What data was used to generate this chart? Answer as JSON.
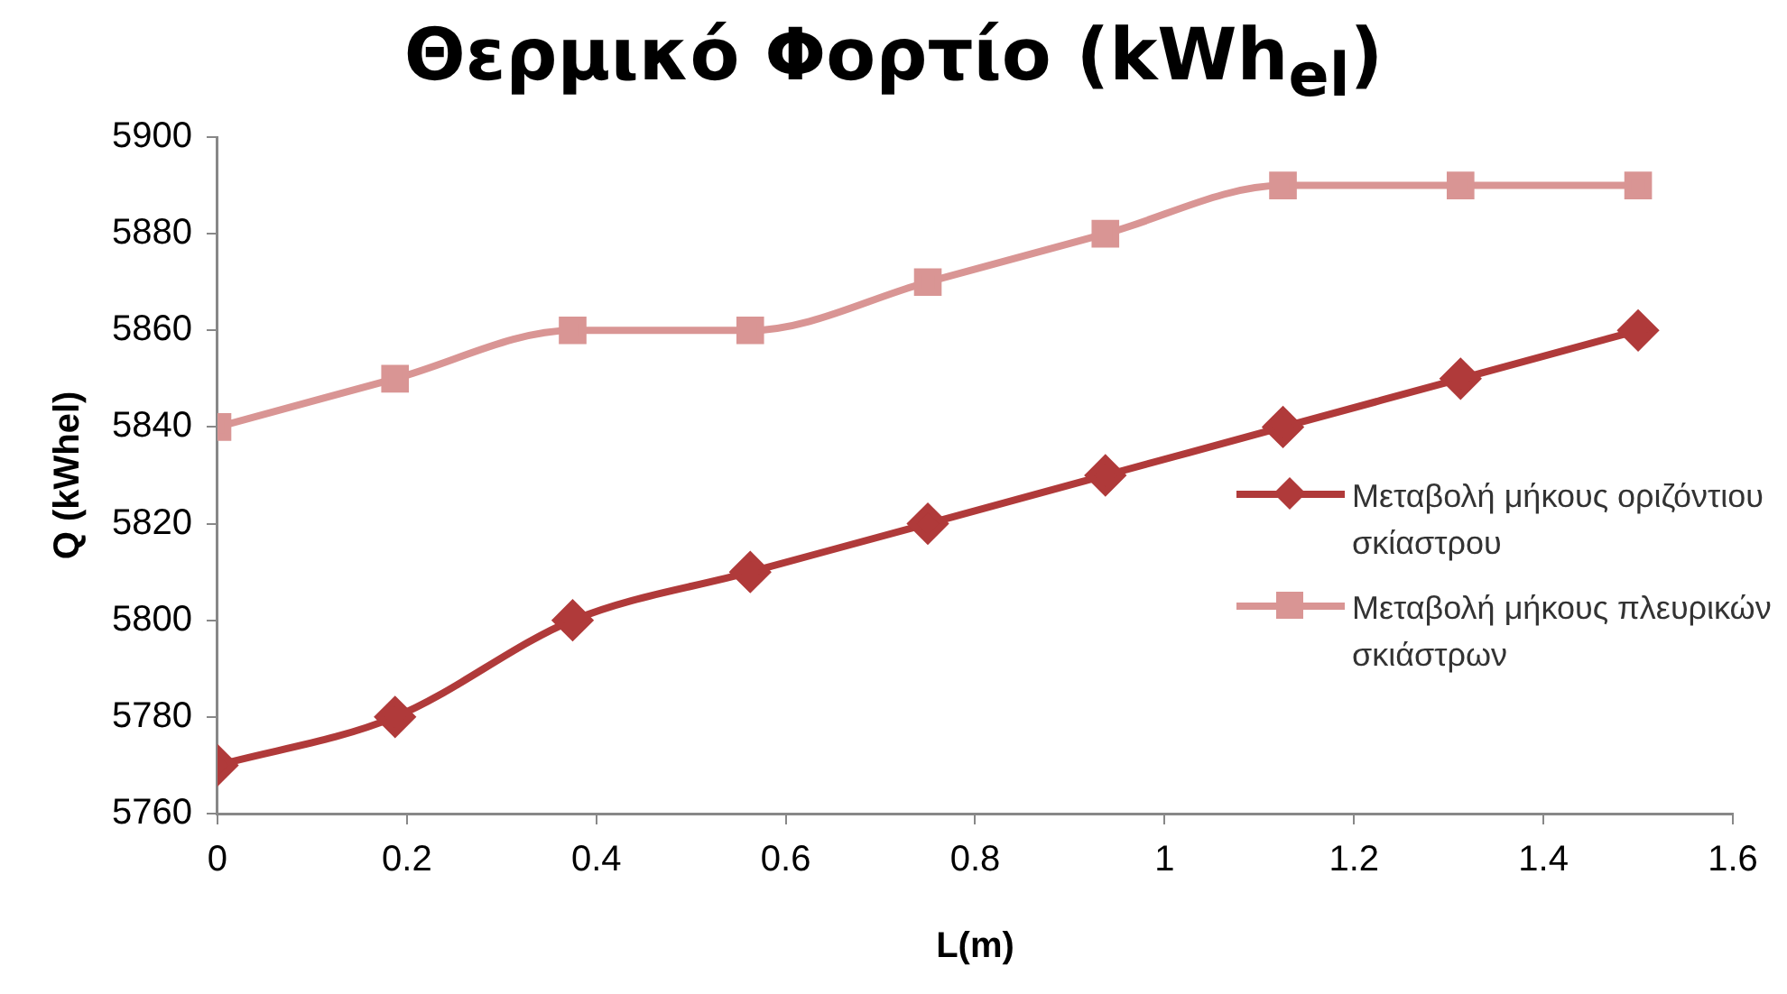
{
  "chart_data": {
    "type": "line",
    "title": "Θερμικό Φορτίο (kWh$_{el}$)",
    "xlabel": "L(m)",
    "ylabel": "Q (kWhel)",
    "x": [
      0,
      0.1875,
      0.375,
      0.5625,
      0.75,
      0.9375,
      1.125,
      1.3125,
      1.5
    ],
    "series": [
      {
        "name": "Μεταβολή μήκους οριζόντιου σκίαστρου",
        "color": "#b03a3a",
        "marker": "diamond",
        "values": [
          5770,
          5780,
          5800,
          5810,
          5820,
          5830,
          5840,
          5850,
          5860
        ]
      },
      {
        "name": "Μεταβολή μήκους πλευρικών σκιάστρων",
        "color": "#d99594",
        "marker": "square",
        "values": [
          5840,
          5850,
          5860,
          5860,
          5870,
          5880,
          5890,
          5890,
          5890
        ]
      }
    ],
    "xlim": [
      0,
      1.6
    ],
    "xticks": [
      0,
      0.2,
      0.4,
      0.6,
      0.8,
      1,
      1.2,
      1.4,
      1.6
    ],
    "ylim": [
      5760,
      5900
    ],
    "yticks": [
      5760,
      5780,
      5800,
      5820,
      5840,
      5860,
      5880,
      5900
    ],
    "grid": false,
    "legend": "right",
    "line_style": "solid"
  }
}
